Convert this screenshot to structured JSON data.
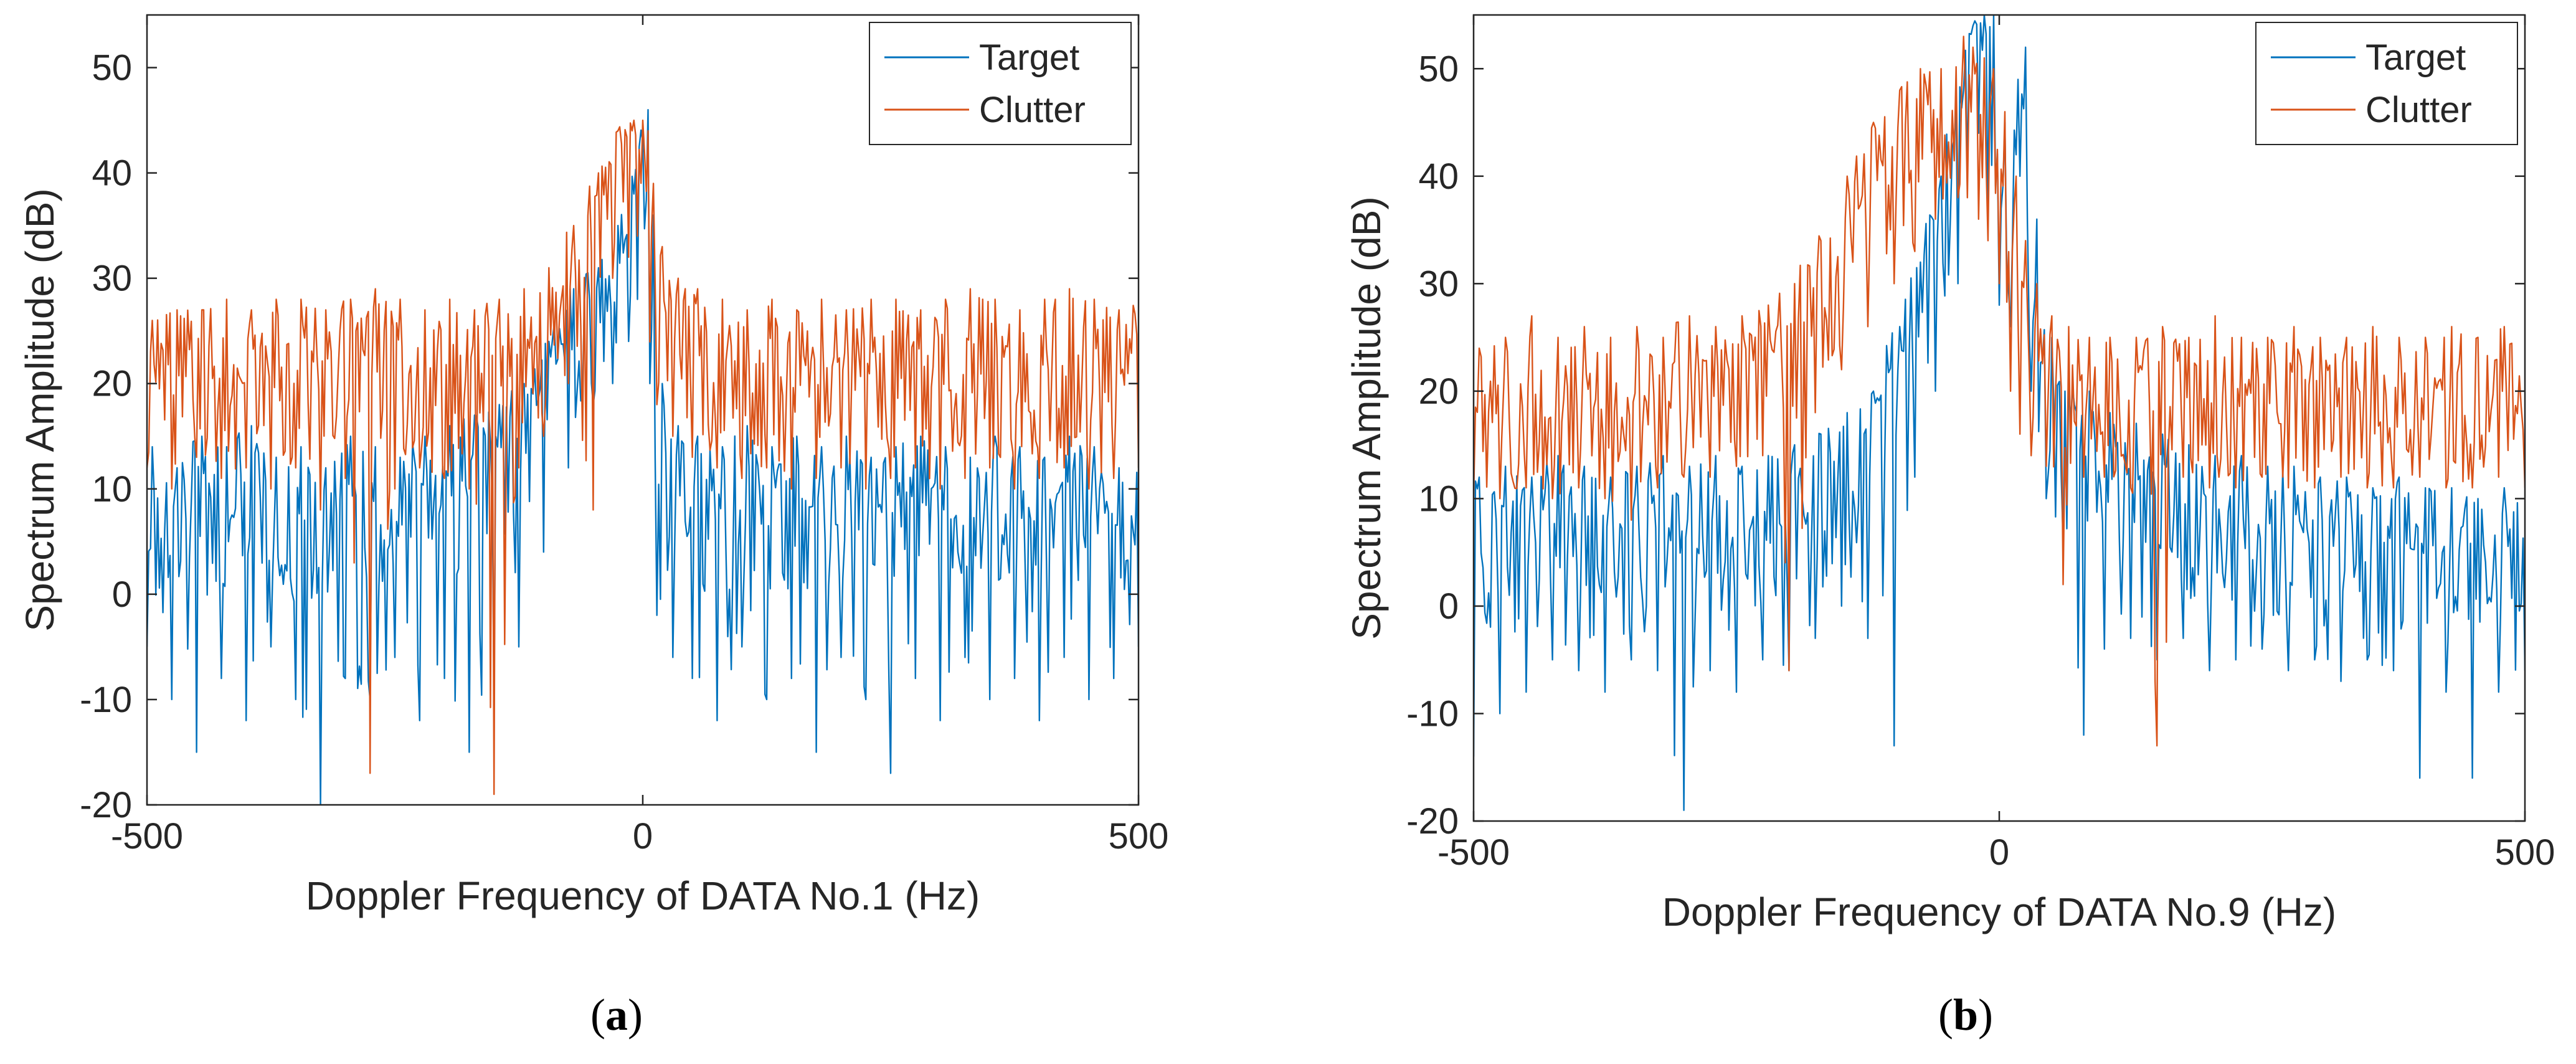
{
  "colors": {
    "target": "#0072BD",
    "clutter": "#D95319",
    "axis": "#262626",
    "tick_text": "#262626",
    "background": "#ffffff"
  },
  "chart_data": [
    {
      "type": "line",
      "panel_label": "(a)",
      "panel_letter": "a",
      "xlabel": "Doppler Frequency of DATA No.1 (Hz)",
      "ylabel": "Spectrum Amplitude (dB)",
      "xlim": [
        -500,
        500
      ],
      "ylim": [
        -20,
        55
      ],
      "xticks": [
        -500,
        0,
        500
      ],
      "xtick_labels": [
        "-500",
        "0",
        "500"
      ],
      "yticks": [
        -20,
        -10,
        0,
        10,
        20,
        30,
        40,
        50
      ],
      "ytick_labels": [
        "-20",
        "-10",
        "0",
        "10",
        "20",
        "30",
        "40",
        "50"
      ],
      "legend": {
        "position": "top-right",
        "entries": [
          "Target",
          "Clutter"
        ]
      },
      "series": [
        {
          "name": "Target",
          "color": "#0072BD",
          "x": [
            -500,
            -475,
            -450,
            -425,
            -400,
            -375,
            -350,
            -325,
            -300,
            -275,
            -250,
            -225,
            -200,
            -175,
            -150,
            -125,
            -100,
            -75,
            -50,
            -30,
            -15,
            -5,
            0,
            5,
            15,
            30,
            50,
            75,
            100,
            125,
            150,
            175,
            200,
            225,
            250,
            275,
            300,
            325,
            350,
            375,
            400,
            425,
            450,
            475,
            500
          ],
          "y": [
            7,
            5,
            8,
            6,
            9,
            5,
            7,
            6,
            8,
            7,
            6,
            8,
            9,
            10,
            12,
            14,
            18,
            24,
            27,
            30,
            34,
            40,
            46,
            30,
            12,
            9,
            8,
            7,
            9,
            6,
            8,
            7,
            8,
            6,
            7,
            8,
            7,
            6,
            8,
            7,
            6,
            8,
            7,
            5,
            7
          ],
          "min": [
            -5,
            -10,
            -15,
            -8,
            -12,
            -5,
            -10,
            -20,
            -8,
            -10,
            -6,
            -12,
            -8,
            -15,
            -10,
            -5,
            4,
            12,
            18,
            20,
            24,
            28,
            34,
            12,
            -2,
            -6,
            -8,
            -12,
            -5,
            -10,
            -8,
            -15,
            -6,
            -10,
            -17,
            -8,
            -12,
            -6,
            -10,
            -8,
            -12,
            -6,
            -10,
            -8,
            -5
          ],
          "max": [
            14,
            12,
            15,
            14,
            16,
            13,
            14,
            12,
            15,
            14,
            13,
            15,
            16,
            17,
            18,
            20,
            24,
            29,
            31,
            35,
            38,
            43,
            46,
            36,
            20,
            16,
            15,
            14,
            16,
            14,
            15,
            14,
            15,
            13,
            14,
            15,
            14,
            13,
            15,
            14,
            13,
            15,
            14,
            12,
            14
          ]
        },
        {
          "name": "Clutter",
          "color": "#D95319",
          "x": [
            -500,
            -475,
            -450,
            -425,
            -400,
            -375,
            -350,
            -325,
            -300,
            -275,
            -250,
            -225,
            -200,
            -175,
            -150,
            -125,
            -100,
            -75,
            -50,
            -30,
            -15,
            -5,
            0,
            5,
            15,
            30,
            50,
            75,
            100,
            125,
            150,
            175,
            200,
            225,
            250,
            275,
            300,
            325,
            350,
            375,
            400,
            425,
            450,
            475,
            500
          ],
          "y": [
            20,
            21,
            20,
            21,
            20,
            20,
            21,
            20,
            21,
            20,
            21,
            20,
            21,
            21,
            22,
            23,
            25,
            28,
            35,
            40,
            42,
            42,
            40,
            33,
            28,
            25,
            23,
            22,
            21,
            21,
            20,
            21,
            20,
            21,
            20,
            21,
            20,
            20,
            21,
            20,
            21,
            20,
            21,
            20,
            21
          ],
          "min": [
            12,
            10,
            13,
            11,
            12,
            10,
            12,
            8,
            11,
            -17,
            10,
            12,
            11,
            10,
            -19,
            12,
            15,
            20,
            8,
            30,
            32,
            34,
            33,
            24,
            18,
            15,
            13,
            12,
            11,
            12,
            10,
            11,
            12,
            10,
            11,
            12,
            10,
            11,
            12,
            10,
            11,
            12,
            10,
            11,
            12
          ],
          "max": [
            26,
            27,
            27,
            28,
            27,
            28,
            28,
            27,
            28,
            29,
            28,
            27,
            28,
            27,
            28,
            29,
            31,
            35,
            40,
            44,
            45,
            45,
            44,
            39,
            33,
            30,
            29,
            28,
            27,
            28,
            27,
            28,
            27,
            28,
            28,
            27,
            28,
            29,
            28,
            27,
            28,
            29,
            28,
            27,
            28
          ]
        }
      ]
    },
    {
      "type": "line",
      "panel_label": "(b)",
      "panel_letter": "b",
      "xlabel": "Doppler Frequency of DATA No.9 (Hz)",
      "ylabel": "Spectrum Amplitude (dB)",
      "xlim": [
        -500,
        500
      ],
      "ylim": [
        -20,
        55
      ],
      "xticks": [
        -500,
        0,
        500
      ],
      "xtick_labels": [
        "-500",
        "0",
        "500"
      ],
      "yticks": [
        -20,
        -10,
        0,
        10,
        20,
        30,
        40,
        50
      ],
      "ytick_labels": [
        "-20",
        "-10",
        "0",
        "10",
        "20",
        "30",
        "40",
        "50"
      ],
      "legend": {
        "position": "top-right",
        "entries": [
          "Target",
          "Clutter"
        ]
      },
      "series": [
        {
          "name": "Target",
          "color": "#0072BD",
          "x": [
            -500,
            -475,
            -450,
            -425,
            -400,
            -375,
            -350,
            -325,
            -300,
            -275,
            -250,
            -225,
            -200,
            -175,
            -150,
            -125,
            -100,
            -80,
            -60,
            -40,
            -30,
            -20,
            -10,
            0,
            10,
            20,
            30,
            45,
            60,
            80,
            100,
            125,
            150,
            175,
            200,
            225,
            250,
            275,
            300,
            325,
            350,
            375,
            400,
            425,
            450,
            475,
            500
          ],
          "y": [
            5,
            6,
            5,
            7,
            6,
            5,
            6,
            7,
            6,
            7,
            6,
            7,
            8,
            9,
            11,
            14,
            20,
            26,
            35,
            45,
            53,
            54,
            52,
            38,
            35,
            50,
            30,
            18,
            15,
            13,
            12,
            11,
            10,
            9,
            8,
            8,
            7,
            7,
            6,
            6,
            5,
            6,
            5,
            5,
            4,
            5,
            4
          ],
          "min": [
            -14,
            -10,
            -8,
            -5,
            -6,
            -8,
            -5,
            -6,
            -19,
            -6,
            -8,
            -5,
            -6,
            -3,
            0,
            -3,
            -13,
            12,
            20,
            30,
            40,
            44,
            36,
            28,
            26,
            40,
            20,
            10,
            6,
            -12,
            -4,
            -3,
            -5,
            -3,
            -6,
            -5,
            -4,
            -6,
            -5,
            -7,
            -5,
            -6,
            -16,
            -8,
            -16,
            -8,
            -6
          ],
          "max": [
            12,
            13,
            12,
            14,
            13,
            12,
            13,
            14,
            13,
            14,
            13,
            14,
            15,
            16,
            18,
            20,
            26,
            32,
            40,
            48,
            54,
            55,
            55,
            45,
            42,
            52,
            36,
            25,
            22,
            20,
            18,
            17,
            16,
            15,
            14,
            14,
            13,
            13,
            12,
            12,
            11,
            12,
            11,
            11,
            10,
            11,
            10
          ]
        },
        {
          "name": "Clutter",
          "color": "#D95319",
          "x": [
            -500,
            -475,
            -450,
            -425,
            -400,
            -375,
            -350,
            -325,
            -300,
            -275,
            -250,
            -225,
            -200,
            -175,
            -150,
            -125,
            -100,
            -80,
            -60,
            -40,
            -30,
            -20,
            -10,
            0,
            10,
            20,
            30,
            45,
            60,
            80,
            100,
            125,
            150,
            175,
            200,
            225,
            250,
            275,
            300,
            325,
            350,
            375,
            400,
            425,
            450,
            475,
            500
          ],
          "y": [
            18,
            18,
            19,
            18,
            19,
            18,
            19,
            19,
            20,
            20,
            21,
            22,
            24,
            28,
            33,
            38,
            42,
            44,
            45,
            46,
            46,
            45,
            44,
            40,
            33,
            28,
            24,
            21,
            20,
            19,
            19,
            18,
            18,
            19,
            18,
            18,
            19,
            18,
            18,
            19,
            18,
            18,
            19,
            18,
            18,
            19,
            18
          ],
          "min": [
            10,
            10,
            11,
            10,
            11,
            10,
            8,
            11,
            12,
            12,
            13,
            14,
            -6,
            18,
            22,
            26,
            30,
            33,
            36,
            38,
            38,
            36,
            34,
            30,
            20,
            16,
            14,
            13,
            2,
            12,
            12,
            11,
            -13,
            12,
            11,
            11,
            12,
            11,
            11,
            12,
            11,
            11,
            12,
            11,
            11,
            12,
            11
          ],
          "max": [
            24,
            25,
            27,
            25,
            26,
            25,
            26,
            25,
            27,
            26,
            27,
            28,
            30,
            34,
            40,
            45,
            48,
            50,
            50,
            53,
            52,
            51,
            50,
            46,
            40,
            34,
            30,
            27,
            26,
            25,
            25,
            25,
            26,
            25,
            27,
            25,
            25,
            26,
            25,
            25,
            26,
            25,
            25,
            26,
            25,
            26,
            25
          ]
        }
      ]
    }
  ]
}
